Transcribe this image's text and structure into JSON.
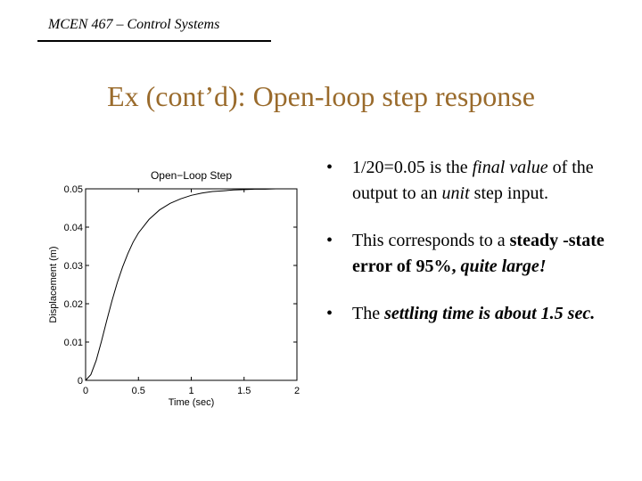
{
  "header": {
    "course": "MCEN 467 – Control Systems"
  },
  "slide": {
    "title": "Ex (cont’d): Open-loop step response"
  },
  "chart_data": {
    "type": "line",
    "title": "Open−Loop Step",
    "xlabel": "Time (sec)",
    "ylabel": "Displacement (m)",
    "xlim": [
      0,
      2
    ],
    "ylim": [
      0,
      0.05
    ],
    "xticks": [
      0,
      0.5,
      1,
      1.5,
      2
    ],
    "xtick_labels": [
      "0",
      "0.5",
      "1",
      "1.5",
      "2"
    ],
    "yticks": [
      0,
      0.01,
      0.02,
      0.03,
      0.04,
      0.05
    ],
    "ytick_labels": [
      "0",
      "0.01",
      "0.02",
      "0.03",
      "0.04",
      "0.05"
    ],
    "reference_line": 0.05,
    "grid": false,
    "series": [
      {
        "x": [
          0,
          0.05,
          0.1,
          0.15,
          0.2,
          0.25,
          0.3,
          0.35,
          0.4,
          0.45,
          0.5,
          0.6,
          0.7,
          0.8,
          0.9,
          1.0,
          1.1,
          1.2,
          1.3,
          1.4,
          1.5,
          1.6,
          1.7,
          1.8,
          1.9,
          2.0
        ],
        "y": [
          0,
          0.0015,
          0.0052,
          0.0102,
          0.0156,
          0.0208,
          0.0255,
          0.0296,
          0.0331,
          0.0361,
          0.0385,
          0.042,
          0.0445,
          0.0462,
          0.0474,
          0.0483,
          0.0489,
          0.0493,
          0.0495,
          0.0497,
          0.0498,
          0.0499,
          0.0499,
          0.05,
          0.05,
          0.05
        ]
      }
    ]
  },
  "bullets": [
    {
      "marker": "•",
      "parts": [
        {
          "t": "1/20=0.05 is the "
        },
        {
          "t": "final value",
          "i": true
        },
        {
          "t": " of the output to an "
        },
        {
          "t": "unit",
          "i": true
        },
        {
          "t": " step input."
        }
      ]
    },
    {
      "marker": "•",
      "parts": [
        {
          "t": "This corresponds to a "
        },
        {
          "t": "steady -state error of 95%,",
          "b": true
        },
        {
          "t": " "
        },
        {
          "t": "quite large!",
          "b": true,
          "i": true
        }
      ]
    },
    {
      "marker": "•",
      "parts": [
        {
          "t": "The "
        },
        {
          "t": "settling time is about 1.5 sec.",
          "b": true,
          "i": true
        }
      ]
    }
  ]
}
